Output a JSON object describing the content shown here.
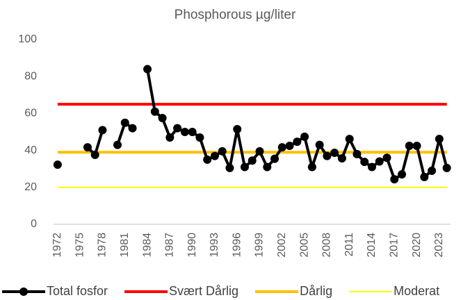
{
  "chart_data": {
    "type": "line",
    "title": "Phosphorous µg/liter",
    "categories": [
      "1972",
      null,
      null,
      "1975",
      null,
      null,
      "1978",
      null,
      null,
      "1981",
      null,
      null,
      "1984",
      null,
      null,
      "1987",
      null,
      null,
      "1990",
      null,
      null,
      "1993",
      null,
      null,
      "1996",
      null,
      null,
      "1999",
      null,
      null,
      "2002",
      null,
      null,
      "2005",
      null,
      null,
      "2008",
      null,
      null,
      "2011",
      null,
      null,
      "2014",
      null,
      null,
      "2017",
      null,
      null,
      "2020",
      null,
      null,
      "2023",
      null
    ],
    "series": [
      {
        "name": "Total fosfor",
        "color": "#000000",
        "markers": true,
        "values": [
          32.3,
          null,
          null,
          null,
          41.7,
          37.6,
          51,
          null,
          43,
          55,
          52,
          null,
          84,
          61,
          57.5,
          47,
          52,
          50,
          50,
          47,
          35,
          37,
          39.5,
          30.5,
          51.5,
          31,
          34.5,
          39.5,
          31,
          35.5,
          41.7,
          42.5,
          44.7,
          47.4,
          31,
          43,
          37,
          38.7,
          35.7,
          46.2,
          38,
          33.8,
          31,
          34,
          36,
          24.4,
          27,
          42.5,
          42.5,
          25.6,
          29,
          46.2,
          30.5
        ]
      },
      {
        "name": "Svært Dårlig",
        "color": "#ff0000",
        "markers": false,
        "values": [
          65,
          65,
          65,
          65,
          65,
          65,
          65,
          65,
          65,
          65,
          65,
          65,
          65,
          65,
          65,
          65,
          65,
          65,
          65,
          65,
          65,
          65,
          65,
          65,
          65,
          65,
          65,
          65,
          65,
          65,
          65,
          65,
          65,
          65,
          65,
          65,
          65,
          65,
          65,
          65,
          65,
          65,
          65,
          65,
          65,
          65,
          65,
          65,
          65,
          65,
          65,
          65,
          65
        ]
      },
      {
        "name": "Dårlig",
        "color": "#ffc000",
        "markers": false,
        "values": [
          39,
          39,
          39,
          39,
          39,
          39,
          39,
          39,
          39,
          39,
          39,
          39,
          39,
          39,
          39,
          39,
          39,
          39,
          39,
          39,
          39,
          39,
          39,
          39,
          39,
          39,
          39,
          39,
          39,
          39,
          39,
          39,
          39,
          39,
          39,
          39,
          39,
          39,
          39,
          39,
          39,
          39,
          39,
          39,
          39,
          39,
          39,
          39,
          39,
          39,
          39,
          39,
          39
        ]
      },
      {
        "name": "Moderat",
        "color": "#ffff00",
        "markers": false,
        "values": [
          20,
          20,
          20,
          20,
          20,
          20,
          20,
          20,
          20,
          20,
          20,
          20,
          20,
          20,
          20,
          20,
          20,
          20,
          20,
          20,
          20,
          20,
          20,
          20,
          20,
          20,
          20,
          20,
          20,
          20,
          20,
          20,
          20,
          20,
          20,
          20,
          20,
          20,
          20,
          20,
          20,
          20,
          20,
          20,
          20,
          20,
          20,
          20,
          20,
          20,
          20,
          20,
          20
        ]
      }
    ],
    "ylim": [
      0,
      100
    ],
    "yticks": [
      0,
      20,
      40,
      60,
      80,
      100
    ],
    "grid": false,
    "legend": "bottom"
  }
}
